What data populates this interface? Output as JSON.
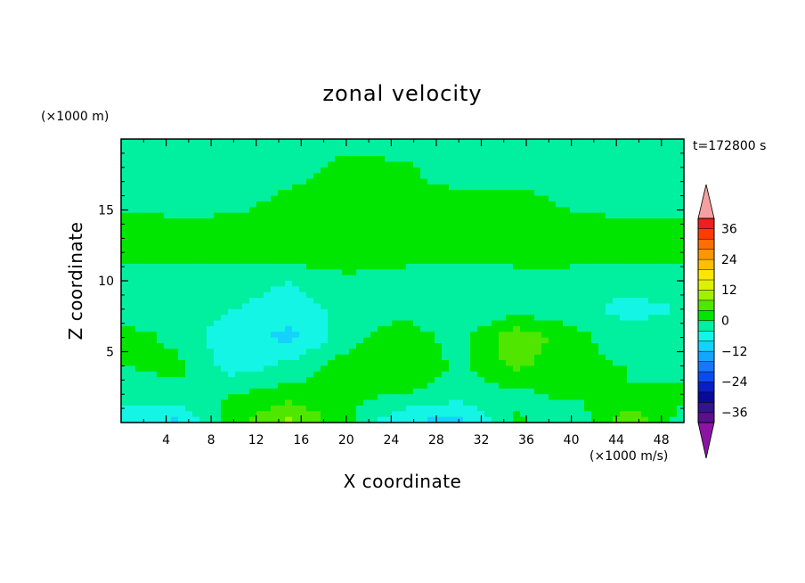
{
  "chart_data": {
    "type": "heatmap",
    "subtype": "filled-contour",
    "title": "zonal velocity",
    "xlabel": "X coordinate",
    "ylabel": "Z coordinate",
    "x_unit_label": "(×1000 m/s)",
    "y_unit_label": "(×1000 m)",
    "time_label": "t=172800 s",
    "xlim": [
      0,
      50
    ],
    "ylim": [
      0,
      20
    ],
    "x_ticks": [
      4,
      8,
      12,
      16,
      20,
      24,
      28,
      32,
      36,
      40,
      44,
      48
    ],
    "y_ticks": [
      5,
      10,
      15
    ],
    "colorbar": {
      "levels": [
        -40,
        -36,
        -32,
        -28,
        -24,
        -20,
        -16,
        -12,
        -8,
        -4,
        0,
        4,
        8,
        12,
        16,
        20,
        24,
        28,
        32,
        36,
        40
      ],
      "labeled_ticks": [
        36,
        24,
        12,
        0,
        -12,
        -24,
        -36
      ],
      "colors": [
        "#5a0f8c",
        "#32148c",
        "#0a0a9a",
        "#0a1ec8",
        "#0a4bf0",
        "#1478ff",
        "#14a5ff",
        "#14d2ff",
        "#14f5e6",
        "#00f0a0",
        "#00e600",
        "#50e600",
        "#a0f000",
        "#dcf000",
        "#ffe600",
        "#ffbe00",
        "#ff9600",
        "#ff6e00",
        "#ff3c00",
        "#f01e1e"
      ],
      "over_color": "#f5a0a0",
      "under_color": "#8c14a5",
      "extend": "both"
    },
    "grid_x": [
      0,
      5,
      10,
      15,
      20,
      25,
      30,
      35,
      40,
      45,
      50
    ],
    "grid_z": [
      0,
      2,
      4,
      6,
      8,
      10,
      12,
      14,
      16,
      18,
      20
    ],
    "values": [
      [
        -7,
        -9,
        3,
        9,
        1,
        -8,
        -10,
        1,
        -4,
        8,
        -2
      ],
      [
        -2,
        -1,
        0,
        2,
        1,
        0,
        -2,
        -1,
        1,
        0,
        1
      ],
      [
        0,
        1,
        -6,
        -3,
        2,
        4,
        -1,
        5,
        1,
        0,
        -2
      ],
      [
        2,
        -1,
        -7,
        -9,
        -2,
        3,
        -2,
        7,
        2,
        -3,
        -1
      ],
      [
        -3,
        -2,
        -4,
        -6,
        -3,
        -2,
        -4,
        -2,
        -3,
        -5,
        -4
      ],
      [
        -2,
        -3,
        -2,
        -4,
        -1,
        -2,
        -3,
        -2,
        -2,
        -3,
        -2
      ],
      [
        2,
        2,
        2,
        3,
        3,
        2,
        2,
        2,
        2,
        2,
        2
      ],
      [
        2,
        1,
        1,
        2,
        2,
        1,
        1,
        1,
        1,
        1,
        1
      ],
      [
        -3,
        -3,
        -2,
        1,
        2,
        1,
        1,
        1,
        -1,
        -3,
        -3
      ],
      [
        -3,
        -3,
        -3,
        -3,
        2,
        1,
        -3,
        -3,
        -3,
        -3,
        -3
      ],
      [
        -3,
        -3,
        -3,
        -3,
        -3,
        -3,
        -3,
        -3,
        -3,
        -3,
        -3
      ]
    ]
  }
}
